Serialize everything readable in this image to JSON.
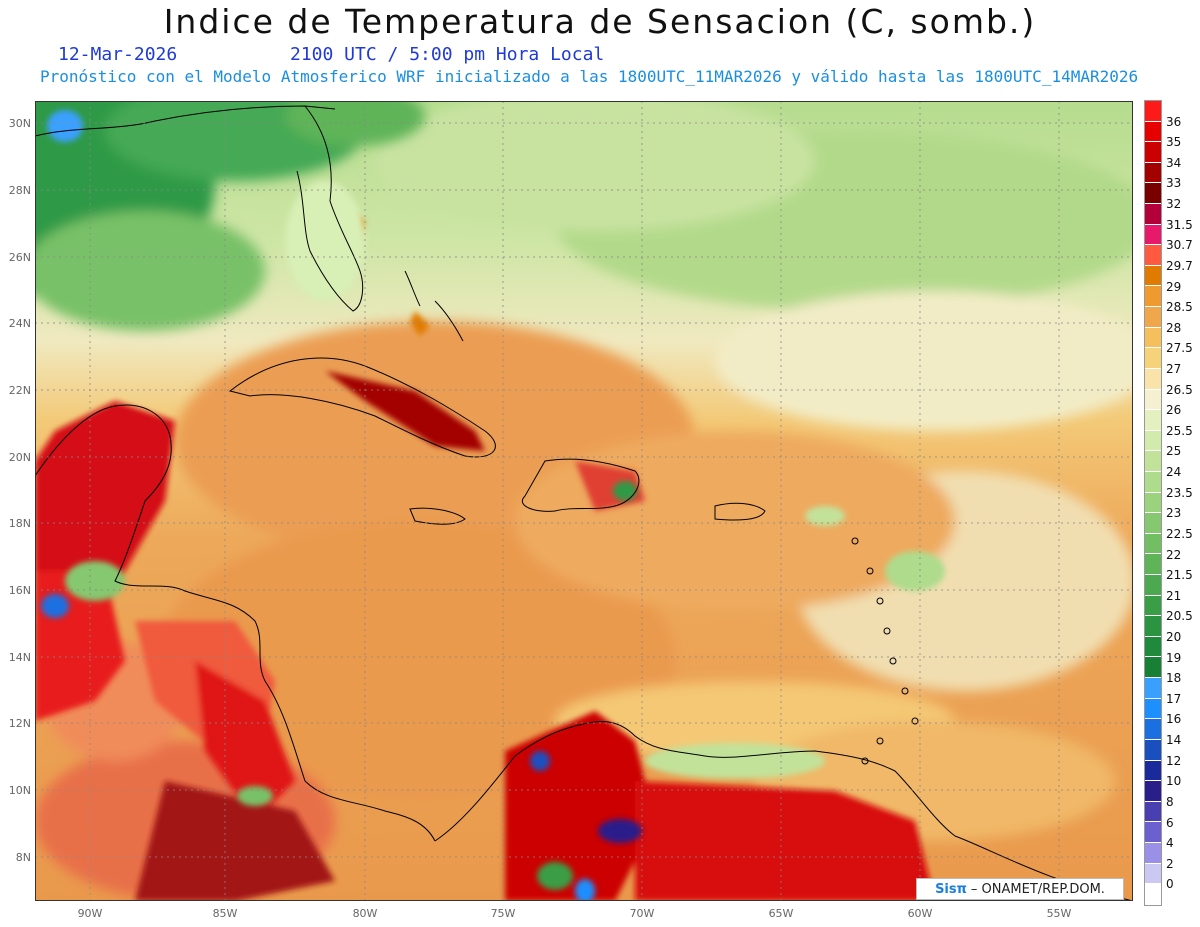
{
  "header": {
    "title": "Indice de Temperatura de Sensacion (C, somb.)",
    "date": "12-Mar-2026",
    "time": "2100 UTC / 5:00 pm Hora Local",
    "forecast": "Pronóstico con el Modelo Atmosferico WRF inicializado a las 1800UTC_11MAR2026 y válido hasta las  1800UTC_14MAR2026"
  },
  "map": {
    "lat_labels": [
      "30N",
      "28N",
      "26N",
      "24N",
      "22N",
      "20N",
      "18N",
      "16N",
      "14N",
      "12N",
      "10N",
      "8N"
    ],
    "lon_labels": [
      "90W",
      "85W",
      "80W",
      "75W",
      "70W",
      "65W",
      "60W",
      "55W"
    ],
    "grid": "dotted",
    "region": "Caribe"
  },
  "colorbar": {
    "labels": [
      "36",
      "35",
      "34",
      "33",
      "32",
      "31.5",
      "30.7",
      "29.7",
      "29",
      "28.5",
      "28",
      "27.5",
      "27",
      "26.5",
      "26",
      "25.5",
      "25",
      "24",
      "23.5",
      "23",
      "22.5",
      "22",
      "21.5",
      "21",
      "20.5",
      "20",
      "19",
      "18",
      "17",
      "16",
      "14",
      "12",
      "10",
      "8",
      "6",
      "4",
      "2",
      "0"
    ],
    "colors": [
      "#ff1a1a",
      "#e60000",
      "#cc0000",
      "#a30000",
      "#7a0000",
      "#b3003a",
      "#e8196b",
      "#ff5a40",
      "#e07a00",
      "#ee9a2e",
      "#f0a64a",
      "#f4bf5c",
      "#f6d27a",
      "#f9e3a8",
      "#f5f0d2",
      "#e4f0c0",
      "#d0ebac",
      "#c2e29a",
      "#aedb8c",
      "#9ad27e",
      "#86c870",
      "#72be63",
      "#5fb458",
      "#4ca94f",
      "#3a9e47",
      "#2a9440",
      "#1f8a3b",
      "#178035",
      "#3aa0ff",
      "#1e8fff",
      "#1a70e0",
      "#1a4fc0",
      "#1a2a9a",
      "#2a1f8a",
      "#4a3fb0",
      "#6c60d0",
      "#9a90e8",
      "#ccc8f4"
    ],
    "last_color": "#ffffff"
  },
  "credit": {
    "brand": "Sisπ",
    "text": "– ONAMET/REP.DOM."
  }
}
